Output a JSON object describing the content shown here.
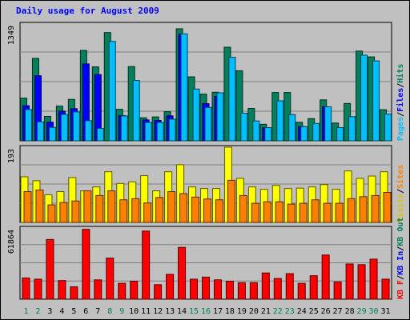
{
  "chart_data": {
    "type": "bar",
    "title": "Daily usage for August 2009",
    "categories": [
      "1",
      "2",
      "3",
      "4",
      "5",
      "6",
      "7",
      "8",
      "9",
      "10",
      "11",
      "12",
      "13",
      "14",
      "15",
      "16",
      "17",
      "18",
      "19",
      "20",
      "21",
      "22",
      "23",
      "24",
      "25",
      "26",
      "27",
      "28",
      "29",
      "30",
      "31"
    ],
    "weekend_days": [
      "1",
      "2",
      "8",
      "9",
      "15",
      "16",
      "22",
      "23",
      "29",
      "30"
    ],
    "panels": [
      {
        "id": "pages-files-hits",
        "ymax_label": "1349",
        "ylim": [
          0,
          1349
        ],
        "label_parts": [
          "Pages",
          "/",
          "Files",
          "/",
          "Hits"
        ],
        "series": [
          {
            "name": "Hits",
            "color": "#00805c",
            "values": [
              493,
              952,
              282,
              401,
              478,
              1044,
              854,
              1250,
              364,
              857,
              266,
              276,
              336,
              1294,
              739,
              539,
              561,
              1081,
              809,
              374,
              191,
              558,
              558,
              214,
              256,
              473,
              205,
              431,
              1036,
              969,
              359
            ]
          },
          {
            "name": "Files",
            "color": "#0000ff",
            "values": [
              405,
              751,
              215,
              343,
              371,
              888,
              765,
              0,
              291,
              0,
              241,
              236,
              288,
              1233,
              0,
              429,
              513,
              0,
              0,
              0,
              151,
              0,
              0,
              164,
              0,
              393,
              0,
              0,
              0,
              0,
              0
            ]
          },
          {
            "name": "Pages",
            "color": "#00bfff",
            "values": [
              361,
              219,
              155,
              305,
              334,
              232,
              143,
              1148,
              287,
              697,
              212,
              212,
              250,
              1235,
              598,
              385,
              554,
              965,
              319,
              229,
              152,
              462,
              303,
              163,
              201,
              393,
              153,
              279,
              989,
              923,
              309
            ]
          }
        ]
      },
      {
        "id": "visits-sites",
        "ymax_label": "193",
        "ylim": [
          0,
          193
        ],
        "label_parts": [
          "Visits",
          "/",
          "Sites"
        ],
        "series": [
          {
            "name": "Visits",
            "color": "#ffff00",
            "values": [
              117,
              107,
              71,
              79,
              115,
              81,
              91,
              130,
              100,
              104,
              120,
              81,
              130,
              148,
              91,
              87,
              87,
              193,
              113,
              91,
              85,
              95,
              87,
              88,
              91,
              97,
              85,
              132,
              113,
              119,
              130
            ]
          },
          {
            "name": "Sites",
            "color": "#ff8000",
            "values": [
              79,
              83,
              45,
              51,
              55,
              81,
              69,
              81,
              58,
              61,
              50,
              64,
              79,
              74,
              65,
              60,
              58,
              108,
              69,
              49,
              53,
              53,
              47,
              49,
              58,
              49,
              49,
              61,
              66,
              69,
              77
            ]
          }
        ]
      },
      {
        "id": "kb",
        "ymax_label": "61864",
        "ylim": [
          0,
          61864
        ],
        "label_parts": [
          "KB F",
          "/",
          "KB In",
          "/",
          "KB Out"
        ],
        "series": [
          {
            "name": "KB F",
            "color": "#ff0000",
            "values": [
              18480,
              17400,
              51900,
              16200,
              10800,
              60700,
              16800,
              35700,
              13800,
              15600,
              59200,
              12600,
              21600,
              45000,
              17400,
              19200,
              16800,
              15600,
              14400,
              14400,
              22800,
              18000,
              22200,
              13800,
              20400,
              38400,
              15000,
              30600,
              30000,
              34800,
              17400
            ]
          }
        ]
      }
    ]
  }
}
